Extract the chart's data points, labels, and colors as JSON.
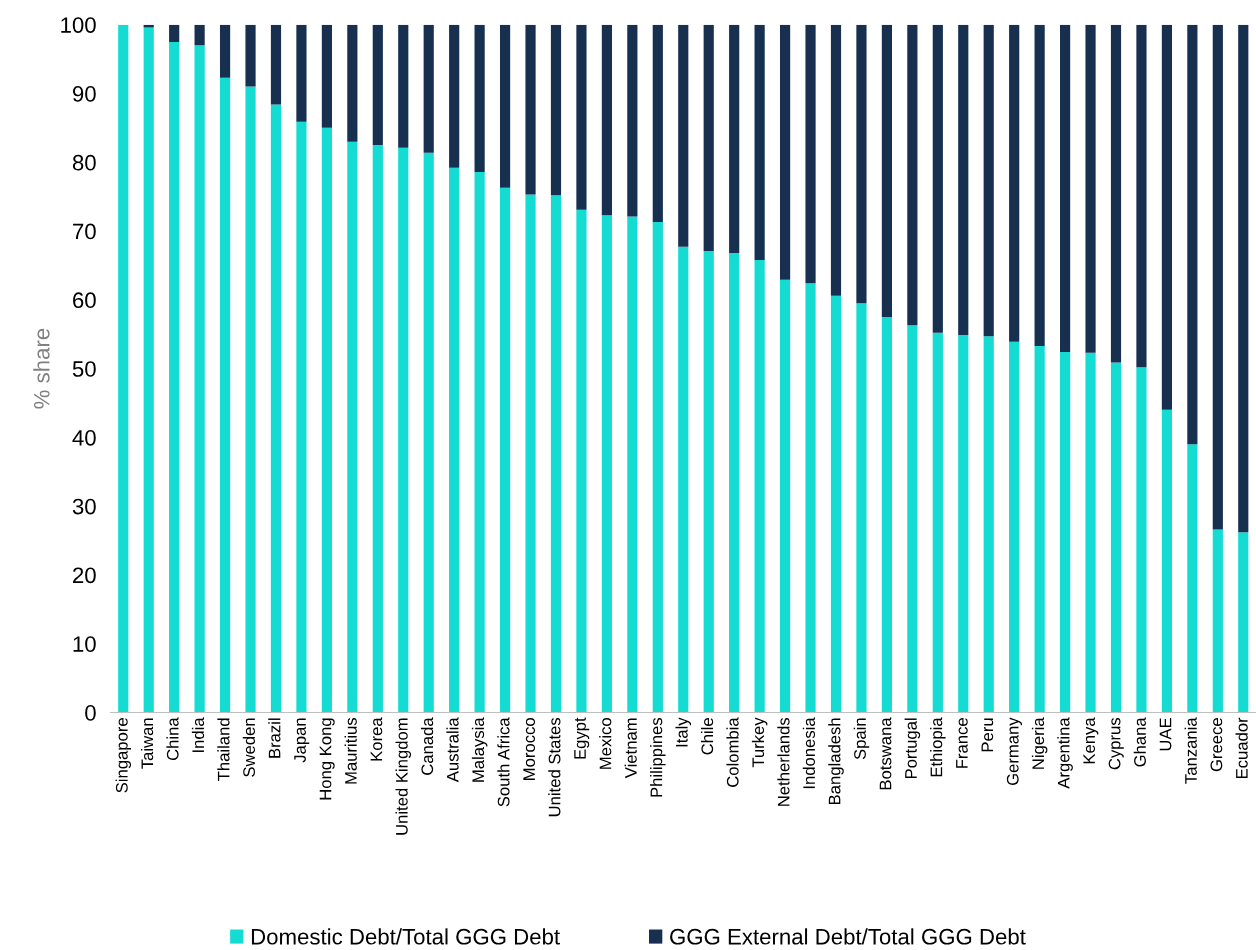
{
  "chart_data": {
    "type": "bar",
    "stacked": true,
    "ylabel": "% share",
    "categories": [
      "Singapore",
      "Taiwan",
      "China",
      "India",
      "Thailand",
      "Sweden",
      "Brazil",
      "Japan",
      "Hong Kong",
      "Mauritius",
      "Korea",
      "United Kingdom",
      "Canada",
      "Australia",
      "Malaysia",
      "South Africa",
      "Morocco",
      "United States",
      "Egypt",
      "Mexico",
      "Vietnam",
      "Philippines",
      "Italy",
      "Chile",
      "Colombia",
      "Turkey",
      "Netherlands",
      "Indonesia",
      "Bangladesh",
      "Spain",
      "Botswana",
      "Portugal",
      "Ethiopia",
      "France",
      "Peru",
      "Germany",
      "Nigeria",
      "Argentina",
      "Kenya",
      "Cyprus",
      "Ghana",
      "UAE",
      "Tanzania",
      "Greece",
      "Ecuador"
    ],
    "series": [
      {
        "name": "Domestic Debt/Total GGG Debt",
        "color": "#14dcd2",
        "values": [
          100,
          99.6,
          97.5,
          97,
          92.3,
          91,
          88.4,
          85.9,
          85,
          83,
          82.5,
          82.1,
          81.4,
          79.2,
          78.6,
          76.3,
          75.3,
          75.2,
          73.1,
          72.3,
          72.1,
          71.3,
          67.7,
          67.1,
          66.8,
          65.8,
          62.9,
          62.4,
          60.6,
          59.5,
          57.5,
          56.3,
          55.2,
          54.9,
          54.7,
          53.9,
          53.3,
          52.4,
          52.3,
          50.9,
          50.2,
          44,
          39,
          26.6,
          26.2
        ]
      },
      {
        "name": "GGG External Debt/Total GGG Debt",
        "color": "#17304f",
        "values": [
          0,
          0.4,
          2.5,
          3,
          7.7,
          9,
          11.6,
          14.1,
          15,
          17,
          17.5,
          17.9,
          18.6,
          20.8,
          21.4,
          23.7,
          24.7,
          24.8,
          26.9,
          27.7,
          27.9,
          28.7,
          32.3,
          32.9,
          33.2,
          34.2,
          37.1,
          37.6,
          39.4,
          40.5,
          42.5,
          43.7,
          44.8,
          45.1,
          45.3,
          46.1,
          46.7,
          47.6,
          47.7,
          49.1,
          49.8,
          56,
          61,
          73.4,
          73.8
        ]
      }
    ],
    "ylim": [
      0,
      100
    ],
    "yticks": [
      0,
      10,
      20,
      30,
      40,
      50,
      60,
      70,
      80,
      90,
      100
    ],
    "grid": false,
    "legend": "bottom"
  }
}
